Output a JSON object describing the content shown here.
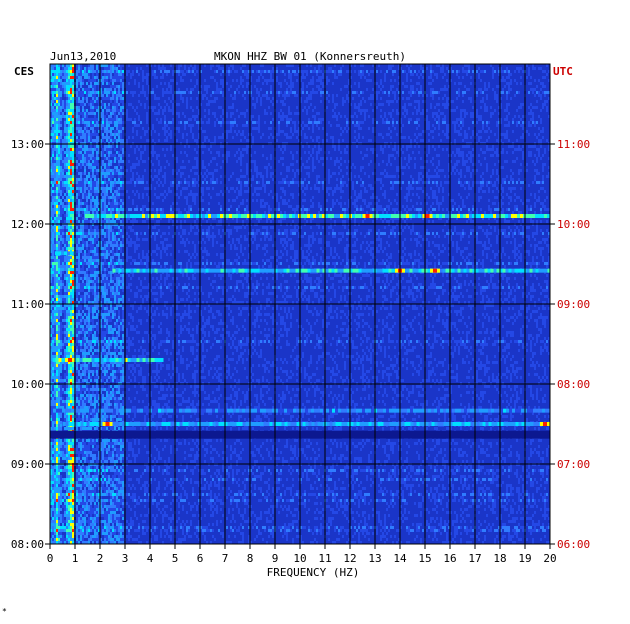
{
  "chart_data": {
    "type": "heatmap",
    "title": "MKON HHZ BW 01 (Konnersreuth)",
    "date": "Jun13,2010",
    "left_timezone": "CES",
    "right_timezone": "UTC",
    "xlabel": "FREQUENCY (HZ)",
    "xlim": [
      0,
      20
    ],
    "x_ticks": [
      "0",
      "1",
      "2",
      "3",
      "4",
      "5",
      "6",
      "7",
      "8",
      "9",
      "10",
      "11",
      "12",
      "13",
      "14",
      "15",
      "16",
      "17",
      "18",
      "19",
      "20"
    ],
    "left_time_ticks": [
      "08:00",
      "09:00",
      "10:00",
      "11:00",
      "12:00",
      "13:00"
    ],
    "right_time_ticks": [
      "06:00",
      "07:00",
      "08:00",
      "09:00",
      "10:00",
      "11:00"
    ],
    "time_range_ces": [
      "08:00",
      "14:00"
    ],
    "colors": {
      "background": "#1a35c8",
      "low": "#0c1890",
      "mid": "#2f7cff",
      "high": "#00e0ff",
      "peak_yellow": "#ffff00",
      "peak_red": "#ff2000",
      "grid": "#000000",
      "utc_text": "#cc0000"
    },
    "bands": [
      {
        "time_ces": "12:06",
        "fmin": 1.4,
        "fmax": 20.0,
        "intensity": 0.75,
        "peaks": [
          12.7,
          15.1
        ]
      },
      {
        "time_ces": "11:25",
        "fmin": 2.5,
        "fmax": 20.0,
        "intensity": 0.65,
        "peaks": [
          14.0,
          15.4
        ]
      },
      {
        "time_ces": "11:38",
        "fmin": 0.2,
        "fmax": 1.0,
        "intensity": 0.5,
        "peaks": []
      },
      {
        "time_ces": "10:18",
        "fmin": 0.1,
        "fmax": 4.5,
        "intensity": 0.7,
        "peaks": [
          0.8
        ]
      },
      {
        "time_ces": "09:22",
        "fmin": 0.0,
        "fmax": 20.0,
        "intensity": 0.15,
        "peaks": []
      },
      {
        "time_ces": "09:30",
        "fmin": 0.5,
        "fmax": 20.0,
        "intensity": 0.55,
        "peaks": [
          2.3,
          19.8
        ]
      },
      {
        "time_ces": "09:40",
        "fmin": 0.0,
        "fmax": 20.0,
        "intensity": 0.45,
        "peaks": []
      }
    ]
  },
  "footer_mark": "*"
}
